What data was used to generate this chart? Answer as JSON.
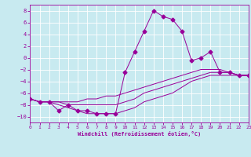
{
  "background_color": "#c8eaf0",
  "grid_color": "#ffffff",
  "line_color": "#990099",
  "xlabel": "Windchill (Refroidissement éolien,°C)",
  "xlim": [
    0,
    23
  ],
  "ylim": [
    -11,
    9
  ],
  "xticks": [
    0,
    1,
    2,
    3,
    4,
    5,
    6,
    7,
    8,
    9,
    10,
    11,
    12,
    13,
    14,
    15,
    16,
    17,
    18,
    19,
    20,
    21,
    22,
    23
  ],
  "yticks": [
    -10,
    -8,
    -6,
    -4,
    -2,
    0,
    2,
    4,
    6,
    8
  ],
  "series": [
    {
      "x": [
        0,
        1,
        2,
        3,
        4,
        5,
        6,
        7,
        8,
        9,
        10,
        11,
        12,
        13,
        14,
        15,
        16,
        17,
        18,
        19,
        20,
        21,
        22,
        23
      ],
      "y": [
        -7,
        -7.5,
        -7.5,
        -7.5,
        -7.5,
        -7.5,
        -7,
        -7,
        -6.5,
        -6.5,
        -6,
        -5.5,
        -5,
        -4.5,
        -4,
        -3.5,
        -3,
        -2.5,
        -2,
        -2,
        -2,
        -2.5,
        -3,
        -3
      ],
      "marker": null
    },
    {
      "x": [
        0,
        1,
        2,
        3,
        4,
        5,
        6,
        7,
        8,
        9,
        10,
        11,
        12,
        13,
        14,
        15,
        16,
        17,
        18,
        19,
        20,
        21,
        22,
        23
      ],
      "y": [
        -7,
        -7.5,
        -7.5,
        -7.5,
        -8,
        -8,
        -8,
        -8,
        -8,
        -8,
        -7.5,
        -7,
        -6,
        -5.5,
        -5,
        -4.5,
        -4,
        -3.5,
        -3,
        -2.5,
        -2.5,
        -2.5,
        -3,
        -3
      ],
      "marker": null
    },
    {
      "x": [
        0,
        1,
        2,
        3,
        4,
        5,
        6,
        7,
        8,
        9,
        10,
        11,
        12,
        13,
        14,
        15,
        16,
        17,
        18,
        19,
        20,
        21,
        22,
        23
      ],
      "y": [
        -7,
        -7.5,
        -7.5,
        -8,
        -8.5,
        -9,
        -9.5,
        -9.5,
        -9.5,
        -9.5,
        -9,
        -8.5,
        -7.5,
        -7,
        -6.5,
        -6,
        -5,
        -4,
        -3.5,
        -3,
        -3,
        -3,
        -3,
        -3
      ],
      "marker": null
    },
    {
      "x": [
        0,
        1,
        2,
        3,
        4,
        5,
        6,
        7,
        8,
        9,
        10,
        11,
        12,
        13,
        14,
        15,
        16,
        17,
        18,
        19,
        20,
        21,
        22,
        23
      ],
      "y": [
        -7,
        -7.5,
        -7.5,
        -9,
        -8,
        -9,
        -9,
        -9.5,
        -9.5,
        -9.5,
        -2.5,
        1,
        4.5,
        8,
        7,
        6.5,
        4.5,
        -0.5,
        0,
        1,
        -2.5,
        -2.5,
        -3,
        -3
      ],
      "marker": "D",
      "markersize": 2.5
    }
  ]
}
